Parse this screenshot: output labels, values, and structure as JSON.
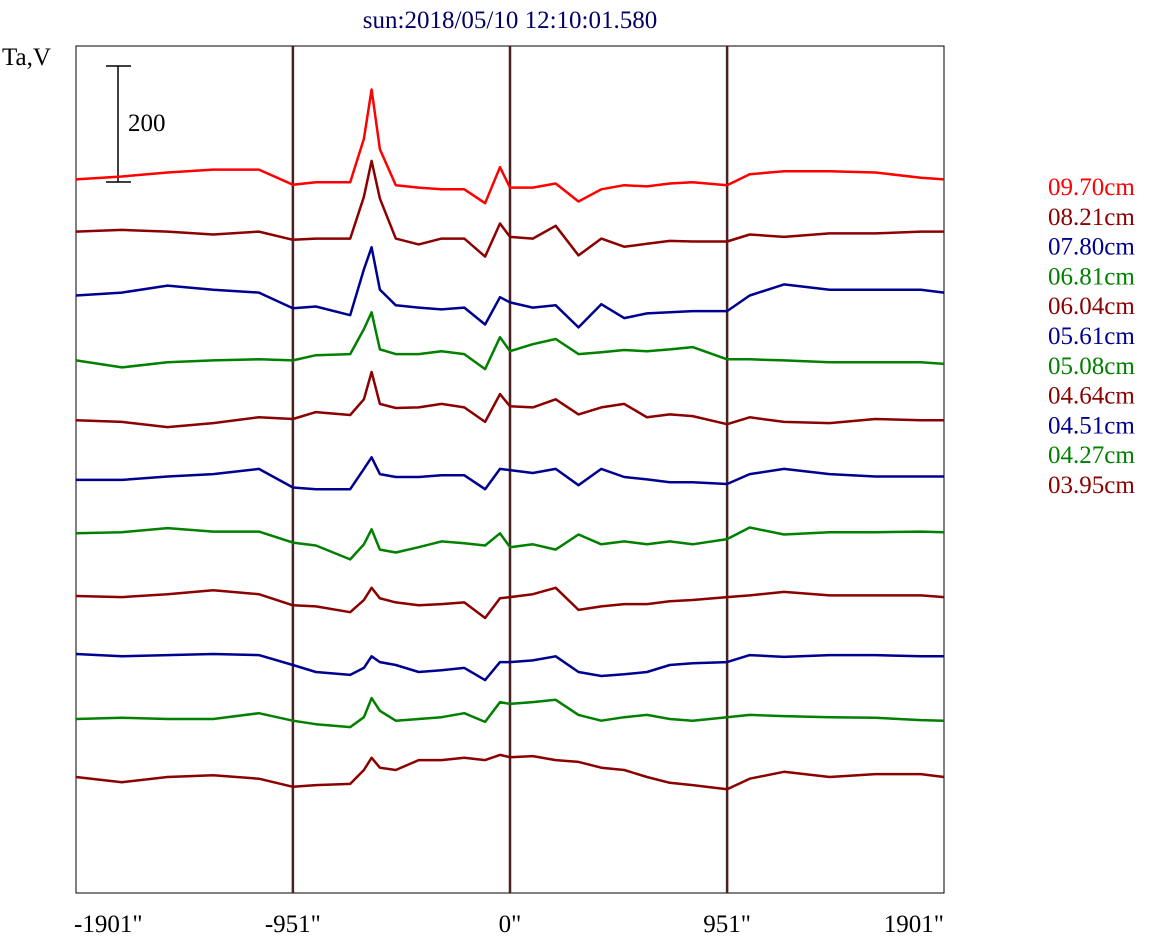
{
  "chart_data": {
    "type": "line",
    "title": "sun:2018/05/10 12:10:01.580",
    "ylabel": "Ta,V",
    "xlabel": "",
    "xlim": [
      -1901,
      1901
    ],
    "ylim": [
      0,
      1460
    ],
    "x_ticks": [
      -1901,
      -951,
      0,
      951,
      1901
    ],
    "x_tick_labels": [
      "-1901\"",
      "-951\"",
      "0\"",
      "951\"",
      "1901\""
    ],
    "vertical_markers": [
      -951,
      0,
      951
    ],
    "scale_bar": {
      "value": 200,
      "label": "200"
    },
    "legend_position": "right",
    "x": [
      -1901,
      -1700,
      -1500,
      -1300,
      -1100,
      -951,
      -850,
      -700,
      -640,
      -606,
      -570,
      -500,
      -400,
      -300,
      -200,
      -109,
      -44,
      0,
      100,
      200,
      300,
      400,
      500,
      600,
      700,
      800,
      951,
      1050,
      1200,
      1400,
      1600,
      1800,
      1901
    ],
    "series": [
      {
        "name": "09.70cm",
        "color": "#ff0000",
        "offset": 1230,
        "values": [
          0,
          5,
          12,
          17,
          17,
          -9,
          -5,
          -5,
          70,
          155,
          52,
          -10,
          -14,
          -17,
          -17,
          -41,
          21,
          -14,
          -14,
          -7,
          -38,
          -17,
          -10,
          -12,
          -7,
          -5,
          -10,
          9,
          14,
          14,
          12,
          3,
          0
        ]
      },
      {
        "name": "08.21cm",
        "color": "#8b0000",
        "offset": 1140,
        "values": [
          0,
          3,
          0,
          -5,
          0,
          -14,
          -12,
          -12,
          60,
          122,
          57,
          -12,
          -22,
          -12,
          -12,
          -43,
          14,
          -9,
          -12,
          10,
          -41,
          -12,
          -26,
          -21,
          -16,
          -17,
          -17,
          -5,
          -9,
          -3,
          -3,
          0,
          0
        ]
      },
      {
        "name": "07.80cm",
        "color": "#000090",
        "offset": 1037,
        "values": [
          -7,
          -2,
          10,
          3,
          -2,
          -29,
          -26,
          -41,
          38,
          76,
          3,
          -24,
          -28,
          -31,
          -28,
          -57,
          -10,
          -19,
          -28,
          -24,
          -62,
          -22,
          -46,
          -38,
          -36,
          -34,
          -34,
          -7,
          12,
          3,
          3,
          3,
          -2
        ]
      },
      {
        "name": "06.81cm",
        "color": "#008000",
        "offset": 915,
        "values": [
          3,
          -9,
          0,
          3,
          5,
          3,
          12,
          14,
          57,
          86,
          22,
          14,
          14,
          19,
          14,
          -12,
          43,
          19,
          31,
          40,
          14,
          17,
          21,
          19,
          22,
          26,
          5,
          5,
          3,
          0,
          0,
          0,
          -3
        ]
      },
      {
        "name": "06.04cm",
        "color": "#8b0000",
        "offset": 815,
        "values": [
          0,
          -3,
          -12,
          -5,
          5,
          2,
          14,
          9,
          36,
          83,
          28,
          21,
          22,
          28,
          22,
          -3,
          45,
          24,
          22,
          36,
          10,
          22,
          28,
          5,
          10,
          7,
          -7,
          5,
          -3,
          -5,
          2,
          0,
          0
        ]
      },
      {
        "name": "05.61cm",
        "color": "#000090",
        "offset": 715,
        "values": [
          -3,
          -3,
          3,
          7,
          16,
          -16,
          -19,
          -19,
          16,
          36,
          7,
          2,
          2,
          5,
          5,
          -19,
          16,
          14,
          9,
          16,
          -12,
          16,
          2,
          -2,
          -7,
          -7,
          -10,
          7,
          16,
          7,
          3,
          3,
          3
        ]
      },
      {
        "name": "05.08cm",
        "color": "#008000",
        "offset": 620,
        "values": [
          0,
          2,
          9,
          3,
          3,
          -16,
          -21,
          -45,
          -19,
          7,
          -28,
          -33,
          -24,
          -14,
          -17,
          -21,
          0,
          -24,
          -19,
          -28,
          -2,
          -19,
          -14,
          -19,
          -14,
          -19,
          -10,
          10,
          -2,
          2,
          2,
          3,
          2
        ]
      },
      {
        "name": "04.64cm",
        "color": "#8b0000",
        "offset": 510,
        "values": [
          2,
          0,
          5,
          12,
          5,
          -14,
          -16,
          -26,
          -5,
          16,
          -2,
          -9,
          -14,
          -12,
          -9,
          -36,
          -2,
          0,
          5,
          16,
          -22,
          -16,
          -12,
          -12,
          -7,
          -5,
          0,
          3,
          9,
          3,
          3,
          3,
          0
        ]
      },
      {
        "name": "04.51cm",
        "color": "#000090",
        "offset": 410,
        "values": [
          2,
          -2,
          0,
          2,
          0,
          -17,
          -29,
          -34,
          -22,
          -2,
          -12,
          -17,
          -29,
          -26,
          -22,
          -43,
          -12,
          -12,
          -9,
          -2,
          -29,
          -36,
          -33,
          -29,
          -17,
          -14,
          -12,
          0,
          -3,
          0,
          0,
          -2,
          -2
        ]
      },
      {
        "name": "04.27cm",
        "color": "#008000",
        "offset": 300,
        "values": [
          0,
          2,
          0,
          0,
          10,
          -3,
          -9,
          -14,
          3,
          36,
          14,
          -3,
          0,
          3,
          10,
          -5,
          29,
          26,
          29,
          33,
          7,
          -3,
          3,
          7,
          0,
          -3,
          3,
          7,
          5,
          3,
          2,
          -2,
          -3
        ]
      },
      {
        "name": "03.95cm",
        "color": "#8b0000",
        "offset": 200,
        "values": [
          0,
          -9,
          0,
          3,
          -3,
          -17,
          -14,
          -12,
          12,
          33,
          16,
          12,
          29,
          29,
          33,
          29,
          38,
          34,
          36,
          29,
          26,
          16,
          12,
          0,
          -10,
          -14,
          -21,
          -3,
          9,
          0,
          5,
          5,
          0
        ]
      }
    ]
  }
}
